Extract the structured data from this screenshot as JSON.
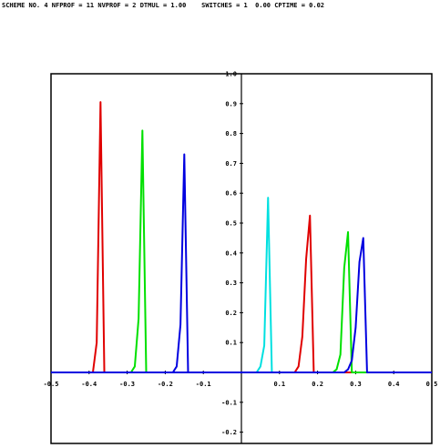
{
  "header": {
    "text": "SCHEME NO. 4 NFPROF = 11 NVPROF = 2 DTMUL = 1.00    SWITCHES = 1  0.00 CPTIME = 0.02"
  },
  "chart_data": {
    "type": "line",
    "title": "",
    "xlabel": "",
    "ylabel": "",
    "xlim": [
      -0.5,
      0.5
    ],
    "ylim": [
      -0.25,
      1.0
    ],
    "grid": false,
    "x_ticks": [
      "-0.5",
      "-0.4",
      "-0.3",
      "-0.2",
      "-0.1",
      "0.1",
      "0.2",
      "0.3",
      "0.4",
      "0.5"
    ],
    "y_ticks": [
      "-0.2",
      "-0.1",
      "0.1",
      "0.2",
      "0.3",
      "0.4",
      "0.5",
      "0.6",
      "0.7",
      "0.8",
      "0.9",
      "1.0"
    ],
    "series": [
      {
        "color": "#e00000",
        "x": [
          -0.5,
          -0.39,
          -0.38,
          -0.37,
          -0.36,
          -0.35,
          0.5
        ],
        "y": [
          0,
          0,
          0.1,
          0.905,
          0,
          0,
          0
        ]
      },
      {
        "color": "#00e000",
        "x": [
          -0.5,
          -0.29,
          -0.28,
          -0.27,
          -0.26,
          -0.25,
          0.5
        ],
        "y": [
          0,
          0,
          0.02,
          0.18,
          0.81,
          0,
          0
        ]
      },
      {
        "color": "#0000e0",
        "x": [
          -0.5,
          -0.18,
          -0.17,
          -0.16,
          -0.15,
          -0.14,
          0.5
        ],
        "y": [
          0,
          0,
          0.02,
          0.16,
          0.73,
          0,
          0
        ]
      },
      {
        "color": "#00e0e0",
        "x": [
          -0.5,
          0.04,
          0.05,
          0.06,
          0.07,
          0.08,
          0.5
        ],
        "y": [
          0,
          0,
          0.02,
          0.09,
          0.585,
          0,
          0
        ]
      },
      {
        "color": "#e00000",
        "x": [
          -0.5,
          0.14,
          0.15,
          0.16,
          0.17,
          0.18,
          0.19,
          0.5
        ],
        "y": [
          0,
          0,
          0.02,
          0.12,
          0.38,
          0.525,
          0,
          0
        ]
      },
      {
        "color": "#00e000",
        "x": [
          -0.5,
          0.24,
          0.25,
          0.26,
          0.27,
          0.28,
          0.29,
          0.3,
          0.5
        ],
        "y": [
          0,
          0,
          0.01,
          0.06,
          0.35,
          0.47,
          0,
          0,
          0
        ]
      },
      {
        "color": "#0000e0",
        "x": [
          -0.5,
          0.27,
          0.28,
          0.29,
          0.3,
          0.31,
          0.32,
          0.33,
          0.34,
          0.5
        ],
        "y": [
          0,
          0,
          0.01,
          0.04,
          0.15,
          0.37,
          0.45,
          0,
          0,
          0
        ]
      }
    ]
  }
}
